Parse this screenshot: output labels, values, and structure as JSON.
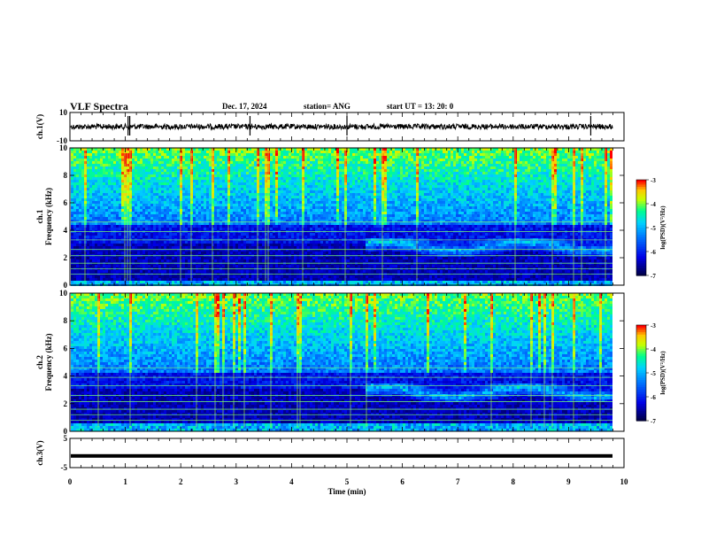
{
  "header": {
    "title": "VLF Spectra",
    "date": "Dec. 17, 2024",
    "station": "station= ANG",
    "start": "start  UT  =   13: 20: 0"
  },
  "chart_data": [
    {
      "type": "line",
      "panel": "ch1-waveform",
      "ylabel": "ch.1(V)",
      "ylim": [
        -10,
        10
      ],
      "yticks": [
        "10",
        "-10"
      ],
      "xlim": [
        0,
        10
      ],
      "baseline_value": 0,
      "spikes_x_min": [
        1.05,
        1.08,
        3.25,
        5.0,
        9.4
      ]
    },
    {
      "type": "heatmap",
      "panel": "ch1-spectrogram",
      "ylabel": "ch.1\nFrequency  (kHz)",
      "ylim": [
        0,
        10
      ],
      "yticks": [
        "0",
        "2",
        "4",
        "6",
        "8",
        "10"
      ],
      "xlim": [
        0,
        10
      ],
      "colorbar_label": "log(PSD)(V²/Hz)",
      "colorbar_ticks": [
        "-3",
        "-4",
        "-5",
        "-6",
        "-7"
      ],
      "colorbar_range": [
        -7,
        -3
      ],
      "colors": [
        "#000080",
        "#0000ff",
        "#00c0ff",
        "#00ff80",
        "#ffff00",
        "#ff0000"
      ]
    },
    {
      "type": "heatmap",
      "panel": "ch2-spectrogram",
      "ylabel": "ch.2\nFrequency  (kHz)",
      "ylim": [
        0,
        10
      ],
      "yticks": [
        "0",
        "2",
        "4",
        "6",
        "8",
        "10"
      ],
      "xlim": [
        0,
        10
      ],
      "colorbar_label": "log(PSD)(V²/Hz)",
      "colorbar_ticks": [
        "-3",
        "-4",
        "-5",
        "-6",
        "-7"
      ],
      "colorbar_range": [
        -7,
        -3
      ],
      "colors": [
        "#000080",
        "#0000ff",
        "#00c0ff",
        "#00ff80",
        "#ffff00",
        "#ff0000"
      ]
    },
    {
      "type": "line",
      "panel": "ch3-waveform",
      "ylabel": "ch.3(V)",
      "ylim": [
        -5,
        5
      ],
      "yticks": [
        "5",
        "-5"
      ],
      "xlim": [
        0,
        10
      ],
      "baseline_value": -1
    }
  ],
  "xaxis": {
    "label": "Time  (min)",
    "ticks": [
      "0",
      "1",
      "2",
      "3",
      "4",
      "5",
      "6",
      "7",
      "8",
      "9",
      "10"
    ]
  }
}
